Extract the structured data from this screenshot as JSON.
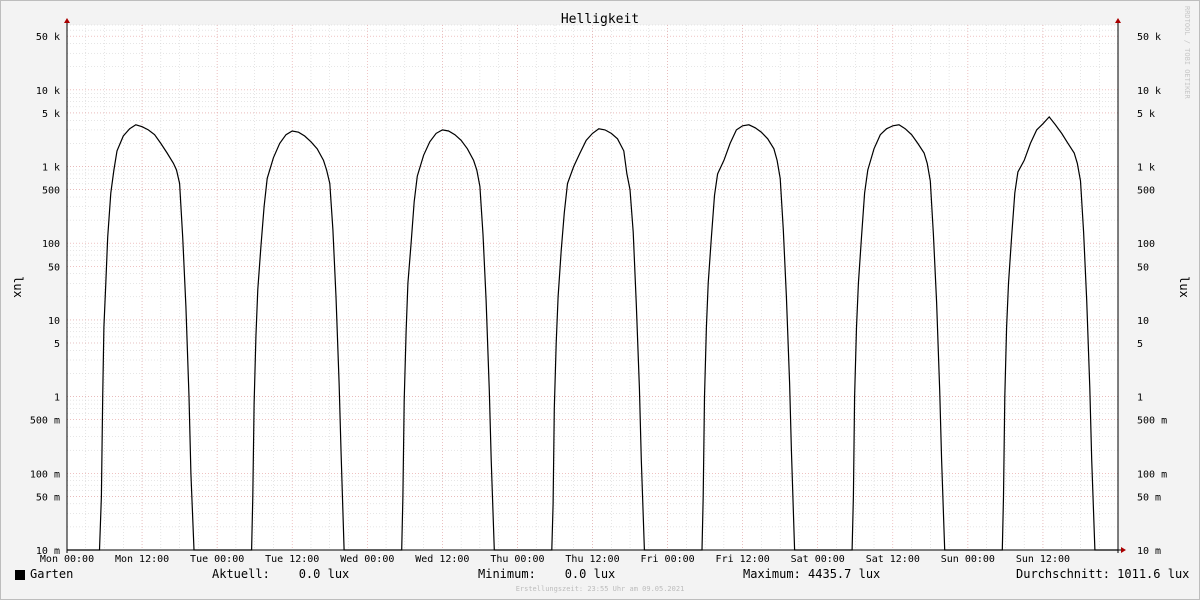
{
  "chart_data": {
    "type": "line",
    "title": "Helligkeit",
    "ylabel": "lux",
    "yscale": "log",
    "ylim": [
      0.01,
      70000
    ],
    "ytick_values": [
      0.01,
      0.05,
      0.1,
      0.5,
      1,
      5,
      10,
      50,
      100,
      500,
      1000,
      5000,
      10000,
      50000
    ],
    "ytick_labels": [
      "10 m",
      "50 m",
      "100 m",
      "500 m",
      "1",
      "5",
      "10",
      "50",
      "100",
      "500",
      "1 k",
      "5 k",
      "10 k",
      "50 k"
    ],
    "xtick_labels": [
      "Mon 00:00",
      "Mon 12:00",
      "Tue 00:00",
      "Tue 12:00",
      "Wed 00:00",
      "Wed 12:00",
      "Thu 00:00",
      "Thu 12:00",
      "Fri 00:00",
      "Fri 12:00",
      "Sat 00:00",
      "Sat 12:00",
      "Sun 00:00",
      "Sun 12:00"
    ],
    "xlim_hours": [
      0,
      168
    ],
    "grid": true,
    "series": [
      {
        "name": "Garten",
        "color": "#000000",
        "x": [
          0,
          5.2,
          5.5,
          5.7,
          5.9,
          6.2,
          6.5,
          7,
          7.5,
          8,
          9,
          10,
          11,
          12,
          13,
          14,
          15,
          16,
          17,
          17.5,
          18,
          18.5,
          19,
          19.5,
          19.8,
          20.3,
          24,
          29.2,
          29.5,
          29.7,
          29.9,
          30.2,
          30.5,
          31,
          31.5,
          32,
          33,
          34,
          35,
          36,
          37,
          38,
          39,
          40,
          41,
          41.5,
          42,
          42.5,
          43,
          43.5,
          43.8,
          44.3,
          48,
          53.2,
          53.5,
          53.7,
          53.9,
          54.2,
          54.5,
          55,
          55.5,
          56,
          57,
          58,
          59,
          60,
          61,
          62,
          63,
          64,
          65,
          65.5,
          66,
          66.5,
          67,
          67.5,
          67.8,
          68.3,
          72,
          77.2,
          77.5,
          77.7,
          77.9,
          78.2,
          78.5,
          79,
          79.5,
          80,
          81,
          82,
          83,
          84,
          85,
          86,
          87,
          88,
          89,
          89.5,
          90,
          90.5,
          91,
          91.5,
          91.8,
          92.3,
          96,
          101.2,
          101.5,
          101.7,
          101.9,
          102.2,
          102.5,
          103,
          103.5,
          104,
          105,
          106,
          107,
          108,
          109,
          110,
          111,
          112,
          113,
          113.5,
          114,
          114.5,
          115,
          115.5,
          115.8,
          116.3,
          120,
          125.2,
          125.5,
          125.7,
          125.9,
          126.2,
          126.5,
          127,
          127.5,
          128,
          129,
          130,
          131,
          132,
          133,
          134,
          135,
          136,
          137,
          137.5,
          138,
          138.5,
          139,
          139.5,
          139.8,
          140.3,
          144,
          149.2,
          149.5,
          149.7,
          149.9,
          150.2,
          150.5,
          151,
          151.5,
          152,
          153,
          154,
          155,
          156,
          157,
          158,
          159,
          160,
          161,
          161.5,
          162,
          162.5,
          163,
          163.5,
          163.8,
          164.3,
          168
        ],
        "y": [
          0.01,
          0.01,
          0.05,
          1,
          8,
          30,
          120,
          450,
          900,
          1600,
          2500,
          3100,
          3500,
          3300,
          3000,
          2600,
          2000,
          1500,
          1100,
          900,
          600,
          120,
          15,
          1,
          0.1,
          0.01,
          0.01,
          0.01,
          0.01,
          0.05,
          0.8,
          6,
          25,
          90,
          300,
          700,
          1300,
          2000,
          2600,
          2900,
          2800,
          2500,
          2100,
          1700,
          1200,
          900,
          600,
          150,
          20,
          1.5,
          0.2,
          0.01,
          0.01,
          0.01,
          0.01,
          0.05,
          0.9,
          7,
          30,
          100,
          350,
          750,
          1400,
          2100,
          2700,
          3000,
          2900,
          2600,
          2200,
          1700,
          1200,
          900,
          550,
          130,
          18,
          1.2,
          0.15,
          0.01,
          0.01,
          0.01,
          0.01,
          0.04,
          0.7,
          5,
          20,
          80,
          250,
          600,
          1000,
          1500,
          2200,
          2700,
          3100,
          3000,
          2700,
          2300,
          1600,
          800,
          500,
          140,
          16,
          1.3,
          0.15,
          0.01,
          0.01,
          0.01,
          0.01,
          0.05,
          1,
          8,
          30,
          120,
          420,
          800,
          1200,
          2000,
          3000,
          3400,
          3500,
          3200,
          2800,
          2300,
          1700,
          1200,
          700,
          150,
          20,
          1.5,
          0.2,
          0.01,
          0.01,
          0.01,
          0.01,
          0.05,
          1,
          8,
          30,
          120,
          450,
          900,
          1700,
          2600,
          3100,
          3400,
          3500,
          3100,
          2600,
          2000,
          1500,
          1100,
          650,
          130,
          17,
          1.2,
          0.15,
          0.01,
          0.01,
          0.01,
          0.01,
          0.05,
          1,
          8,
          30,
          120,
          450,
          850,
          1200,
          2000,
          3000,
          3600,
          4435.7,
          3500,
          2700,
          2000,
          1500,
          1100,
          650,
          140,
          18,
          1.3,
          0.15,
          0.01,
          0.01
        ]
      }
    ]
  },
  "legend": {
    "label": "Garten",
    "color": "#000000"
  },
  "stats": {
    "current": "Aktuell:    0.0 lux",
    "minimum": "Minimum:    0.0 lux",
    "maximum": "Maximum: 4435.7 lux",
    "average": "Durchschnitt: 1011.6 lux"
  },
  "footer_stamp": "Erstellungszeit: 23:55 Uhr am 09.05.2021",
  "watermark": "RRDTOOL / TOBI OETIKER",
  "colors": {
    "background": "#f3f3f3",
    "canvas": "#ffffff",
    "major_grid": "#e7a0a0",
    "minor_grid": "#cccccc",
    "axis": "#000000",
    "arrow": "#aa0000"
  }
}
